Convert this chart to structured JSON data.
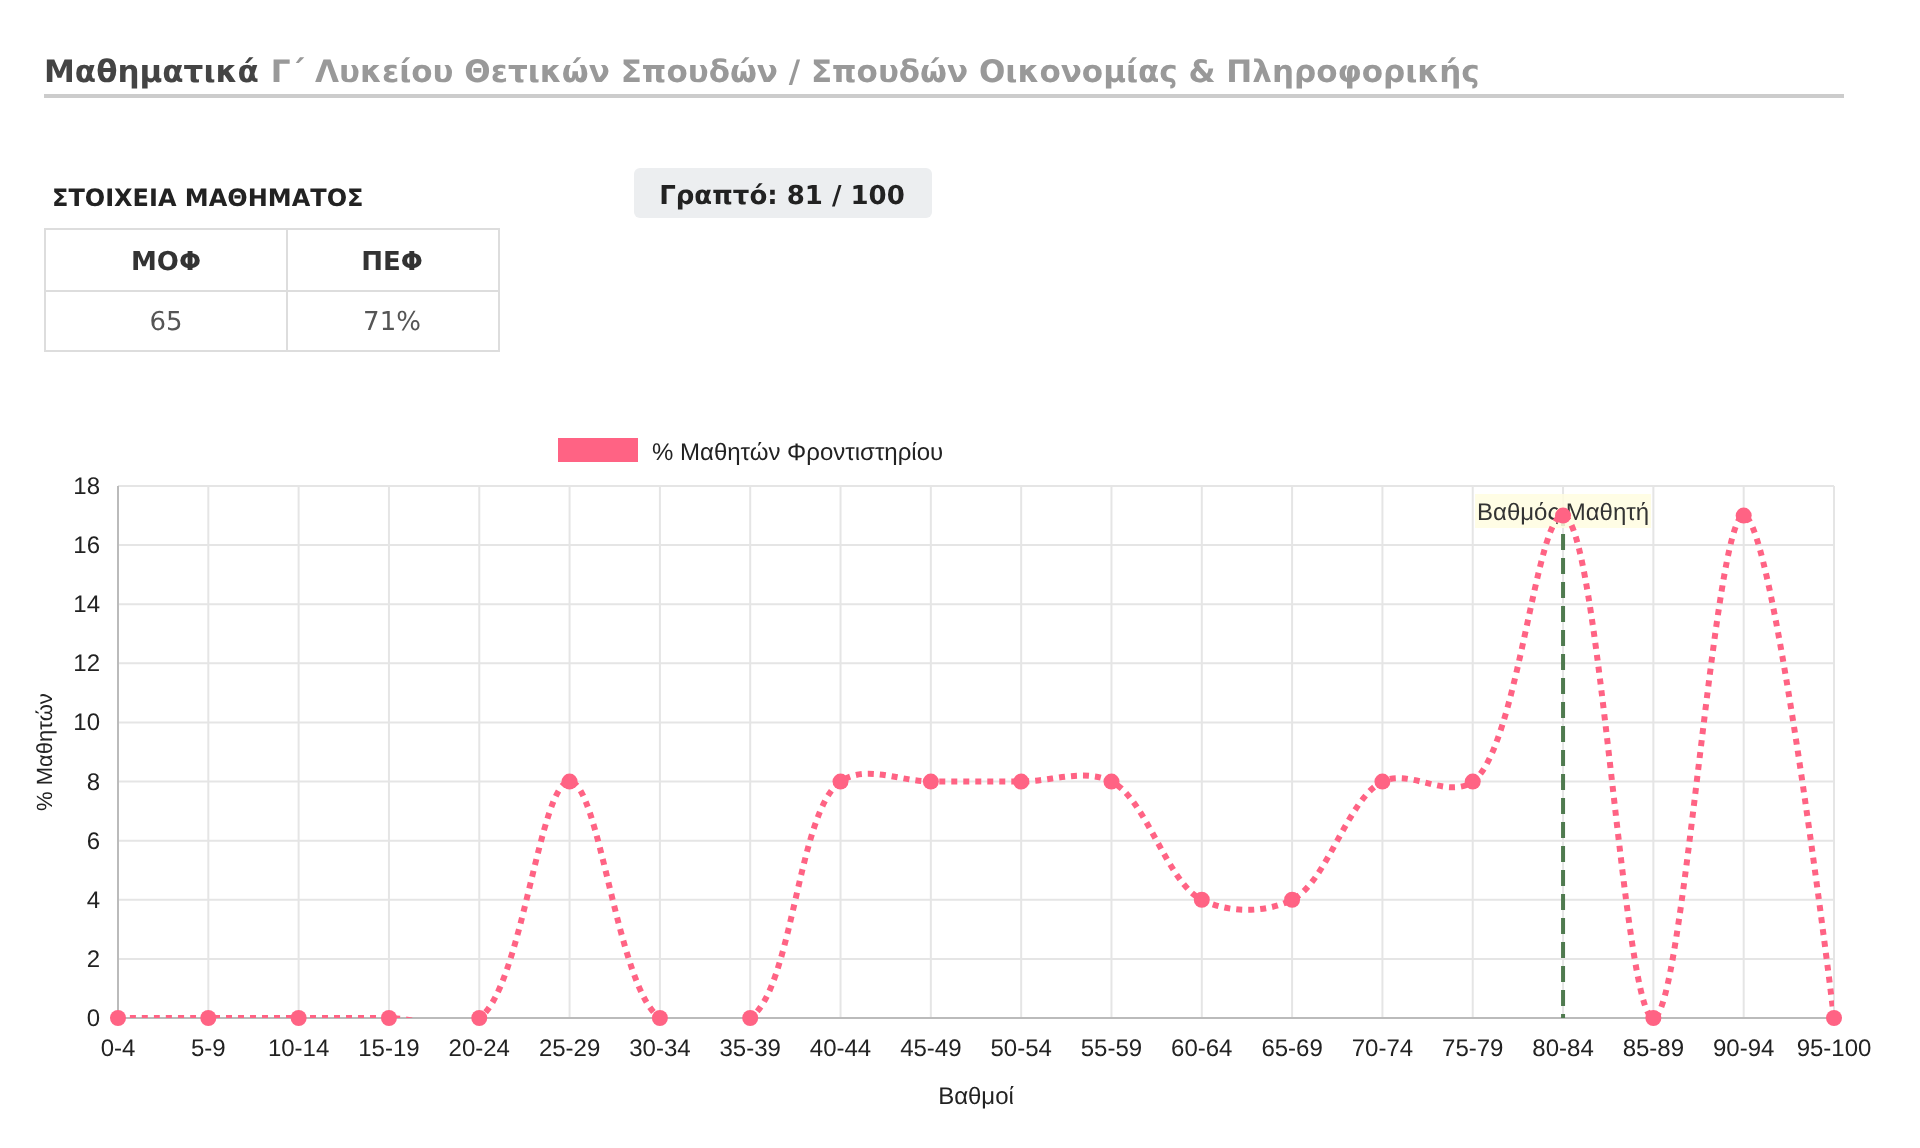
{
  "chart_data": {
    "type": "line",
    "title": "Μαθηματικά",
    "subtitle": "Γ΄ Λυκείου Θετικών Σπουδών / Σπουδών Οικονομίας & Πληροφορικής",
    "annotations": [
      "ΣΤΟΙΧΕΙΑ ΜΑΘΗΜΑΤΟΣ",
      "Γραπτό: 81 / 100",
      "ΜΟΦ",
      "ΠΕΦ",
      "65",
      "71%"
    ],
    "xlabel": "Βαθμοί",
    "ylabel": "% Μαθητών",
    "categories": [
      "0-4",
      "5-9",
      "10-14",
      "15-19",
      "20-24",
      "25-29",
      "30-34",
      "35-39",
      "40-44",
      "45-49",
      "50-54",
      "55-59",
      "60-64",
      "65-69",
      "70-74",
      "75-79",
      "80-84",
      "85-89",
      "90-94",
      "95-100"
    ],
    "series": [
      {
        "name": "% Μαθητών Φροντιστηρίου",
        "color": "#ff6384",
        "values": [
          0,
          0,
          0,
          0,
          0,
          8,
          0,
          0,
          8,
          8,
          8,
          8,
          4,
          4,
          8,
          8,
          17,
          0,
          17,
          0
        ]
      }
    ],
    "ylim": [
      0,
      18
    ],
    "yticks": [
      0,
      2,
      4,
      6,
      8,
      10,
      12,
      14,
      16,
      18
    ],
    "grid": true,
    "legend": "top",
    "marker": "circle",
    "line_style": "dotted",
    "ref_lines": [
      {
        "axis": "x",
        "value": "80-84",
        "label": "Βαθμός Μαθητή",
        "color": "#4f7a4f",
        "line_style": "dashed"
      }
    ]
  }
}
